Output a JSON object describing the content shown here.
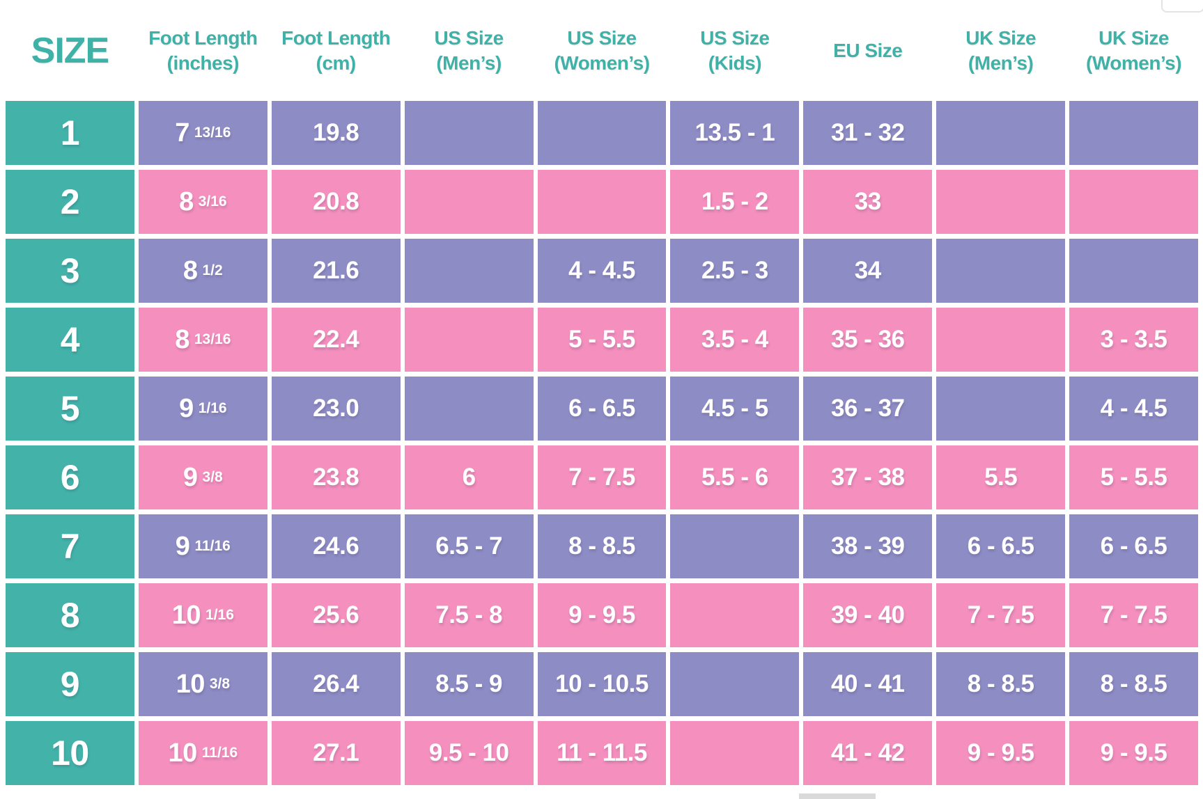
{
  "chart_data": {
    "type": "table",
    "title": "SIZE",
    "columns": [
      {
        "id": "size",
        "label": "SIZE",
        "sub": ""
      },
      {
        "id": "inches",
        "label": "Foot Length",
        "sub": "(inches)"
      },
      {
        "id": "cm",
        "label": "Foot Length",
        "sub": "(cm)"
      },
      {
        "id": "us_mens",
        "label": "US Size",
        "sub": "(Men’s)"
      },
      {
        "id": "us_womens",
        "label": "US Size",
        "sub": "(Women’s)"
      },
      {
        "id": "us_kids",
        "label": "US Size",
        "sub": "(Kids)"
      },
      {
        "id": "eu",
        "label": "EU Size",
        "sub": ""
      },
      {
        "id": "uk_mens",
        "label": "UK Size",
        "sub": "(Men’s)"
      },
      {
        "id": "uk_womens",
        "label": "UK Size",
        "sub": "(Women’s)"
      }
    ],
    "rows": [
      {
        "size": "1",
        "inches_whole": "7",
        "inches_frac": "13/16",
        "cm": "19.8",
        "us_mens": "",
        "us_womens": "",
        "us_kids": "13.5 - 1",
        "eu": "31 - 32",
        "uk_mens": "",
        "uk_womens": ""
      },
      {
        "size": "2",
        "inches_whole": "8",
        "inches_frac": "3/16",
        "cm": "20.8",
        "us_mens": "",
        "us_womens": "",
        "us_kids": "1.5 - 2",
        "eu": "33",
        "uk_mens": "",
        "uk_womens": ""
      },
      {
        "size": "3",
        "inches_whole": "8",
        "inches_frac": "1/2",
        "cm": "21.6",
        "us_mens": "",
        "us_womens": "4 - 4.5",
        "us_kids": "2.5 - 3",
        "eu": "34",
        "uk_mens": "",
        "uk_womens": ""
      },
      {
        "size": "4",
        "inches_whole": "8",
        "inches_frac": "13/16",
        "cm": "22.4",
        "us_mens": "",
        "us_womens": "5 - 5.5",
        "us_kids": "3.5 - 4",
        "eu": "35 - 36",
        "uk_mens": "",
        "uk_womens": "3 - 3.5"
      },
      {
        "size": "5",
        "inches_whole": "9",
        "inches_frac": "1/16",
        "cm": "23.0",
        "us_mens": "",
        "us_womens": "6 - 6.5",
        "us_kids": "4.5 - 5",
        "eu": "36 - 37",
        "uk_mens": "",
        "uk_womens": "4 - 4.5"
      },
      {
        "size": "6",
        "inches_whole": "9",
        "inches_frac": "3/8",
        "cm": "23.8",
        "us_mens": "6",
        "us_womens": "7 - 7.5",
        "us_kids": "5.5 - 6",
        "eu": "37 - 38",
        "uk_mens": "5.5",
        "uk_womens": "5 - 5.5"
      },
      {
        "size": "7",
        "inches_whole": "9",
        "inches_frac": "11/16",
        "cm": "24.6",
        "us_mens": "6.5 - 7",
        "us_womens": "8 - 8.5",
        "us_kids": "",
        "eu": "38 - 39",
        "uk_mens": "6 - 6.5",
        "uk_womens": "6 - 6.5"
      },
      {
        "size": "8",
        "inches_whole": "10",
        "inches_frac": "1/16",
        "cm": "25.6",
        "us_mens": "7.5 - 8",
        "us_womens": "9 - 9.5",
        "us_kids": "",
        "eu": "39 - 40",
        "uk_mens": "7 - 7.5",
        "uk_womens": "7 - 7.5"
      },
      {
        "size": "9",
        "inches_whole": "10",
        "inches_frac": "3/8",
        "cm": "26.4",
        "us_mens": "8.5 - 9",
        "us_womens": "10 - 10.5",
        "us_kids": "",
        "eu": "40 - 41",
        "uk_mens": "8 - 8.5",
        "uk_womens": "8 - 8.5"
      },
      {
        "size": "10",
        "inches_whole": "10",
        "inches_frac": "11/16",
        "cm": "27.1",
        "us_mens": "9.5 - 10",
        "us_womens": "11 - 11.5",
        "us_kids": "",
        "eu": "41 - 42",
        "uk_mens": "9 - 9.5",
        "uk_womens": "9 - 9.5"
      }
    ]
  },
  "colors": {
    "teal": "#43b3a9",
    "purple": "#8e8cc4",
    "pink": "#f48fbe",
    "header_text": "#3fb1a7",
    "cell_text": "#ffffff"
  }
}
